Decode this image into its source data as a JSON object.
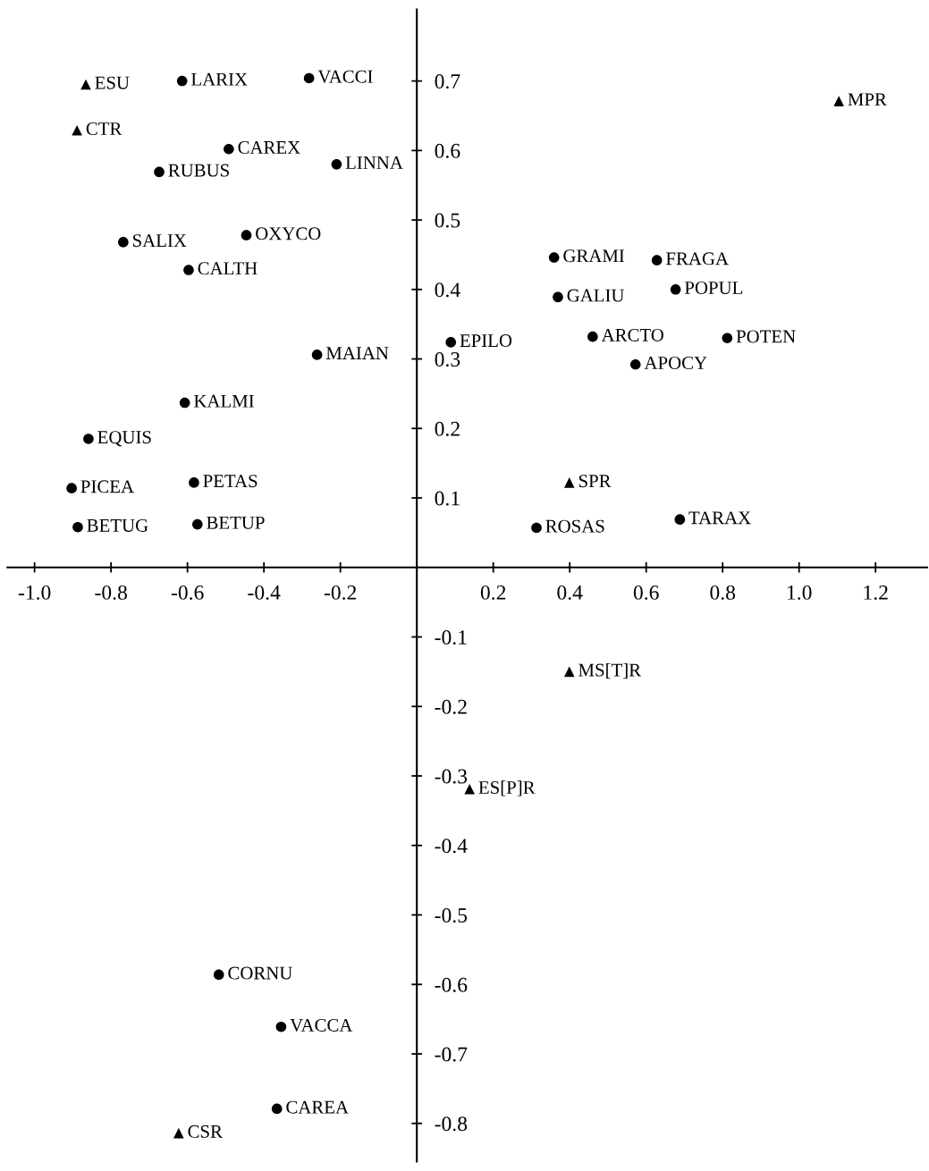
{
  "chart_data": {
    "type": "scatter",
    "xlim": [
      -1.071,
      1.335
    ],
    "ylim": [
      -0.855,
      0.803
    ],
    "xticks": [
      {
        "value": -1.0,
        "label": "-1.0"
      },
      {
        "value": -0.8,
        "label": "-0.8"
      },
      {
        "value": -0.6,
        "label": "-0.6"
      },
      {
        "value": -0.4,
        "label": "-0.4"
      },
      {
        "value": -0.2,
        "label": "-0.2"
      },
      {
        "value": 0.2,
        "label": "0.2"
      },
      {
        "value": 0.4,
        "label": "0.4"
      },
      {
        "value": 0.6,
        "label": "0.6"
      },
      {
        "value": 0.8,
        "label": "0.8"
      },
      {
        "value": 1.0,
        "label": "1.0"
      },
      {
        "value": 1.2,
        "label": "1.2"
      }
    ],
    "yticks": [
      {
        "value": -0.8,
        "label": "-0.8"
      },
      {
        "value": -0.7,
        "label": "-0.7"
      },
      {
        "value": -0.6,
        "label": "-0.6"
      },
      {
        "value": -0.5,
        "label": "-0.5"
      },
      {
        "value": -0.4,
        "label": "-0.4"
      },
      {
        "value": -0.3,
        "label": "-0.3"
      },
      {
        "value": -0.2,
        "label": "-0.2"
      },
      {
        "value": -0.1,
        "label": "-0.1"
      },
      {
        "value": 0.1,
        "label": "0.1"
      },
      {
        "value": 0.2,
        "label": "0.2"
      },
      {
        "value": 0.3,
        "label": "0.3"
      },
      {
        "value": 0.4,
        "label": "0.4"
      },
      {
        "value": 0.5,
        "label": "0.5"
      },
      {
        "value": 0.6,
        "label": "0.6"
      },
      {
        "value": 0.7,
        "label": "0.7"
      }
    ],
    "grid": false,
    "legend": false,
    "series": [
      {
        "color": "#000000",
        "marker": "circle",
        "x": [
          -0.614,
          -0.282,
          -0.492,
          -0.674,
          -0.21,
          -0.768,
          -0.446,
          -0.597,
          -0.261,
          -0.607,
          -0.859,
          -0.903,
          -0.583,
          -0.887,
          -0.574,
          0.359,
          0.628,
          0.677,
          0.369,
          0.089,
          0.46,
          0.812,
          0.572,
          0.688,
          0.313,
          -0.518,
          -0.355,
          -0.366
        ],
        "values": [
          0.7,
          0.704,
          0.602,
          0.569,
          0.58,
          0.468,
          0.478,
          0.428,
          0.306,
          0.237,
          0.185,
          0.114,
          0.122,
          0.058,
          0.062,
          0.446,
          0.442,
          0.4,
          0.389,
          0.324,
          0.332,
          0.33,
          0.292,
          0.069,
          0.057,
          -0.586,
          -0.661,
          -0.779
        ]
      },
      {
        "color": "#000000",
        "marker": "triangle",
        "x": [
          -0.866,
          -0.889,
          1.104,
          0.399,
          0.399,
          0.138,
          -0.623
        ],
        "values": [
          0.695,
          0.629,
          0.671,
          0.122,
          -0.15,
          -0.319,
          -0.814
        ]
      }
    ],
    "annotations": [
      {
        "text": "LARIX",
        "x": -0.614,
        "y": 0.7
      },
      {
        "text": "VACCI",
        "x": -0.282,
        "y": 0.704
      },
      {
        "text": "CAREX",
        "x": -0.492,
        "y": 0.602
      },
      {
        "text": "RUBUS",
        "x": -0.674,
        "y": 0.569
      },
      {
        "text": "LINNA",
        "x": -0.21,
        "y": 0.58
      },
      {
        "text": "SALIX",
        "x": -0.768,
        "y": 0.468
      },
      {
        "text": "OXYCO",
        "x": -0.446,
        "y": 0.478
      },
      {
        "text": "CALTH",
        "x": -0.597,
        "y": 0.428
      },
      {
        "text": "MAIAN",
        "x": -0.261,
        "y": 0.306
      },
      {
        "text": "KALMI",
        "x": -0.607,
        "y": 0.237
      },
      {
        "text": "EQUIS",
        "x": -0.859,
        "y": 0.185
      },
      {
        "text": "PICEA",
        "x": -0.903,
        "y": 0.114
      },
      {
        "text": "PETAS",
        "x": -0.583,
        "y": 0.122
      },
      {
        "text": "BETUG",
        "x": -0.887,
        "y": 0.058
      },
      {
        "text": "BETUP",
        "x": -0.574,
        "y": 0.062
      },
      {
        "text": "GRAMI",
        "x": 0.359,
        "y": 0.446
      },
      {
        "text": "FRAGA",
        "x": 0.628,
        "y": 0.442
      },
      {
        "text": "POPUL",
        "x": 0.677,
        "y": 0.4
      },
      {
        "text": "GALIU",
        "x": 0.369,
        "y": 0.389
      },
      {
        "text": "EPILO",
        "x": 0.089,
        "y": 0.324
      },
      {
        "text": "ARCTO",
        "x": 0.46,
        "y": 0.332
      },
      {
        "text": "POTEN",
        "x": 0.812,
        "y": 0.33
      },
      {
        "text": "APOCY",
        "x": 0.572,
        "y": 0.292
      },
      {
        "text": "TARAX",
        "x": 0.688,
        "y": 0.069
      },
      {
        "text": "ROSAS",
        "x": 0.313,
        "y": 0.057
      },
      {
        "text": "CORNU",
        "x": -0.518,
        "y": -0.586
      },
      {
        "text": "VACCA",
        "x": -0.355,
        "y": -0.661
      },
      {
        "text": "CAREA",
        "x": -0.366,
        "y": -0.779
      },
      {
        "text": "ESU",
        "x": -0.866,
        "y": 0.695
      },
      {
        "text": "CTR",
        "x": -0.889,
        "y": 0.629
      },
      {
        "text": "MPR",
        "x": 1.104,
        "y": 0.671
      },
      {
        "text": "SPR",
        "x": 0.399,
        "y": 0.122
      },
      {
        "text": "MS[T]R",
        "x": 0.399,
        "y": -0.15
      },
      {
        "text": "ES[P]R",
        "x": 0.138,
        "y": -0.319
      },
      {
        "text": "CSR",
        "x": -0.623,
        "y": -0.814
      }
    ]
  }
}
